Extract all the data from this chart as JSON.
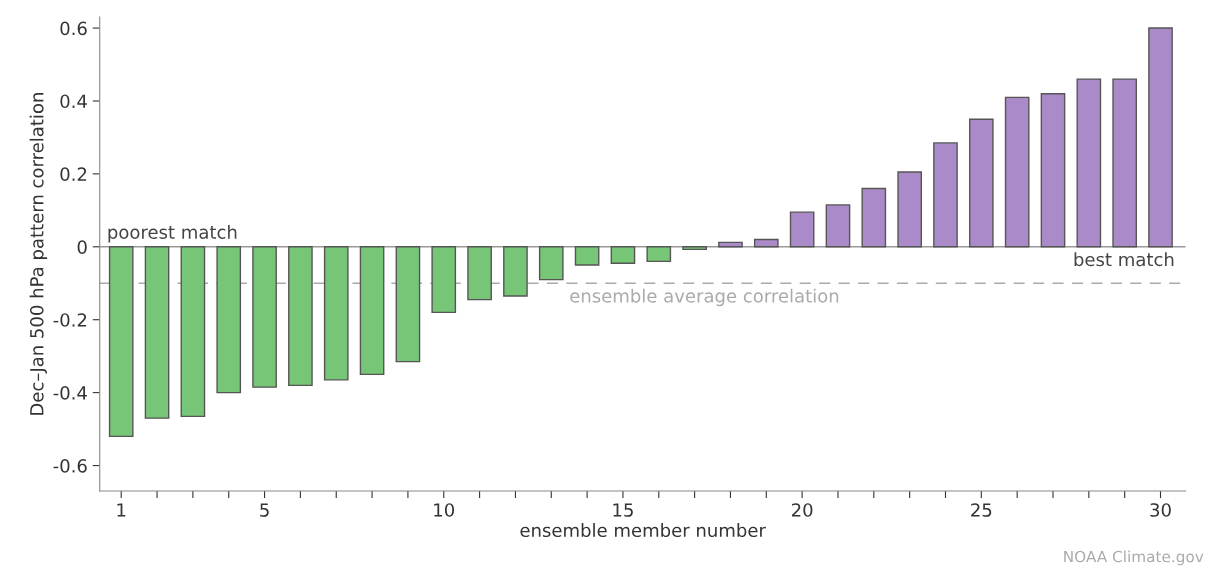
{
  "chart_data": {
    "type": "bar",
    "xlabel": "ensemble member number",
    "ylabel": "Dec–Jan 500 hPa pattern correlation",
    "x": [
      1,
      2,
      3,
      4,
      5,
      6,
      7,
      8,
      9,
      10,
      11,
      12,
      13,
      14,
      15,
      16,
      17,
      18,
      19,
      20,
      21,
      22,
      23,
      24,
      25,
      26,
      27,
      28,
      29,
      30
    ],
    "values": [
      -0.52,
      -0.47,
      -0.465,
      -0.4,
      -0.385,
      -0.38,
      -0.365,
      -0.35,
      -0.315,
      -0.18,
      -0.145,
      -0.135,
      -0.09,
      -0.05,
      -0.045,
      -0.04,
      -0.007,
      0.012,
      0.02,
      0.095,
      0.115,
      0.16,
      0.205,
      0.285,
      0.35,
      0.41,
      0.42,
      0.46,
      0.46,
      0.6
    ],
    "colors": [
      "#77c677",
      "#77c677",
      "#77c677",
      "#77c677",
      "#77c677",
      "#77c677",
      "#77c677",
      "#77c677",
      "#77c677",
      "#77c677",
      "#77c677",
      "#77c677",
      "#77c677",
      "#77c677",
      "#77c677",
      "#77c677",
      "#77c677",
      "#aa8ac8",
      "#aa8ac8",
      "#aa8ac8",
      "#aa8ac8",
      "#aa8ac8",
      "#aa8ac8",
      "#aa8ac8",
      "#aa8ac8",
      "#aa8ac8",
      "#aa8ac8",
      "#aa8ac8",
      "#aa8ac8",
      "#aa8ac8"
    ],
    "xlim": [
      0.4,
      30.7
    ],
    "ylim": [
      -0.67,
      0.63
    ],
    "xticks": [
      1,
      {
        "value": 2,
        "label": null
      },
      {
        "value": 3,
        "label": null
      },
      {
        "value": 4,
        "label": null
      },
      5,
      {
        "value": 6,
        "label": null
      },
      {
        "value": 7,
        "label": null
      },
      {
        "value": 8,
        "label": null
      },
      {
        "value": 9,
        "label": null
      },
      10,
      {
        "value": 11,
        "label": null
      },
      {
        "value": 12,
        "label": null
      },
      {
        "value": 13,
        "label": null
      },
      {
        "value": 14,
        "label": null
      },
      15,
      {
        "value": 16,
        "label": null
      },
      {
        "value": 17,
        "label": null
      },
      {
        "value": 18,
        "label": null
      },
      {
        "value": 19,
        "label": null
      },
      20,
      {
        "value": 21,
        "label": null
      },
      {
        "value": 22,
        "label": null
      },
      {
        "value": 23,
        "label": null
      },
      {
        "value": 24,
        "label": null
      },
      25,
      {
        "value": 26,
        "label": null
      },
      {
        "value": 27,
        "label": null
      },
      {
        "value": 28,
        "label": null
      },
      {
        "value": 29,
        "label": null
      },
      30
    ],
    "yticks": [
      {
        "value": -0.6,
        "label": "-0.6"
      },
      {
        "value": -0.4,
        "label": "-0.4"
      },
      {
        "value": -0.2,
        "label": "-0.2"
      },
      0,
      0.2,
      0.4,
      0.6
    ],
    "ref_lines": [
      {
        "axis": "y",
        "value": 0,
        "color": "#999999",
        "line_style": "solid"
      },
      {
        "axis": "y",
        "value": -0.1,
        "label": "ensemble average correlation",
        "color": "#aaaaaa",
        "line_style": "dashed"
      }
    ],
    "annotations": [
      {
        "text": "poorest match",
        "x": 1,
        "y": 0
      },
      {
        "text": "best match",
        "x": 30,
        "y": 0
      },
      "NOAA Climate.gov"
    ],
    "grid": false
  }
}
